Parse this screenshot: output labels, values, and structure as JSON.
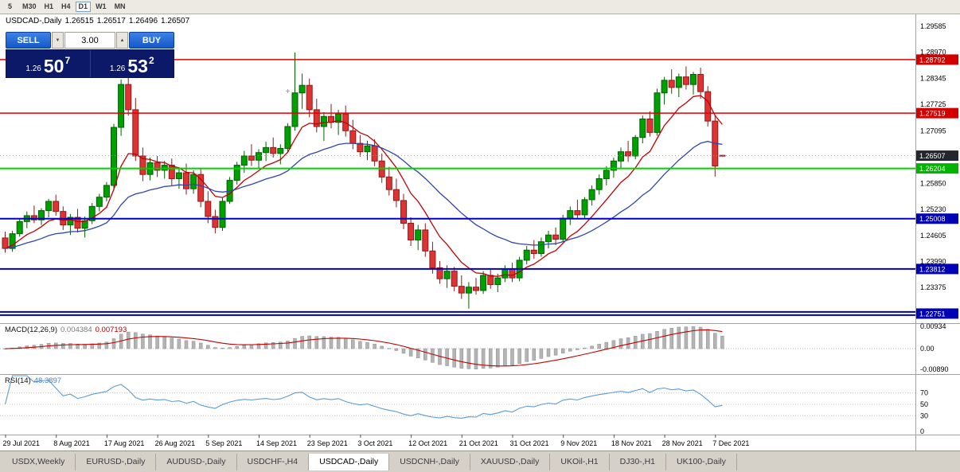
{
  "toolbar": {
    "timeframes": [
      {
        "label": "5",
        "active": false
      },
      {
        "label": "M30",
        "active": false
      },
      {
        "label": "H1",
        "active": false
      },
      {
        "label": "H4",
        "active": false
      },
      {
        "label": "D1",
        "active": true
      },
      {
        "label": "W1",
        "active": false
      },
      {
        "label": "MN",
        "active": false
      }
    ]
  },
  "chart_header": {
    "symbol": "USDCAD-,Daily",
    "open": "1.26515",
    "high": "1.26517",
    "low": "1.26496",
    "close": "1.26507"
  },
  "trade_panel": {
    "sell_label": "SELL",
    "buy_label": "BUY",
    "volume": "3.00",
    "decrease_glyph": "▼",
    "increase_glyph": "▲",
    "bid": {
      "prefix": "1.26",
      "big": "50",
      "sup": "7"
    },
    "ask": {
      "prefix": "1.26",
      "big": "53",
      "sup": "2"
    }
  },
  "indicators": {
    "macd": {
      "title": "MACD(12,26,9)",
      "value1": "0.004384",
      "value2": "0.007193",
      "fast": 12,
      "slow": 26,
      "signal": 9,
      "signal_color": "#c00000",
      "histogram_color": "#b4b4b4",
      "scale": [
        {
          "v": 0.00934,
          "t": "0.00934"
        },
        {
          "v": 0,
          "t": "0.00"
        },
        {
          "v": -0.0089,
          "t": "-0.00890"
        }
      ]
    },
    "rsi": {
      "title": "RSI(14)",
      "value": "48.3897",
      "period": 14,
      "line_color": "#5b9bd5",
      "levels": [
        70,
        50,
        30
      ],
      "scale": [
        {
          "v": 70,
          "t": "70"
        },
        {
          "v": 50,
          "t": "50"
        },
        {
          "v": 30,
          "t": "30"
        },
        {
          "v": 0,
          "t": "0"
        }
      ]
    }
  },
  "price_axis": {
    "ticks": [
      {
        "p": 1.29585,
        "t": "1.29585"
      },
      {
        "p": 1.2897,
        "t": "1.28970"
      },
      {
        "p": 1.28345,
        "t": "1.28345"
      },
      {
        "p": 1.27725,
        "t": "1.27725"
      },
      {
        "p": 1.27095,
        "t": "1.27095"
      },
      {
        "p": 1.26475,
        "t": "1.26475"
      },
      {
        "p": 1.2585,
        "t": "1.25850"
      },
      {
        "p": 1.2523,
        "t": "1.25230"
      },
      {
        "p": 1.24605,
        "t": "1.24605"
      },
      {
        "p": 1.2399,
        "t": "1.23990"
      },
      {
        "p": 1.23375,
        "t": "1.23375"
      }
    ],
    "badges": [
      {
        "p": 1.28792,
        "t": "1.28792",
        "bg": "#d40000"
      },
      {
        "p": 1.27519,
        "t": "1.27519",
        "bg": "#d40000"
      },
      {
        "p": 1.26507,
        "t": "1.26507",
        "bg": "#23262e"
      },
      {
        "p": 1.26204,
        "t": "1.26204",
        "bg": "#00b400"
      },
      {
        "p": 1.25008,
        "t": "1.25008",
        "bg": "#0000b4"
      },
      {
        "p": 1.23812,
        "t": "1.23812",
        "bg": "#0000b4"
      },
      {
        "p": 1.22751,
        "t": "1.22751",
        "bg": "#0000b4"
      }
    ]
  },
  "time_axis": {
    "labels": [
      {
        "i": 0,
        "t": "29 Jul 2021"
      },
      {
        "i": 7,
        "t": "8 Aug 2021"
      },
      {
        "i": 14,
        "t": "17 Aug 2021"
      },
      {
        "i": 21,
        "t": "26 Aug 2021"
      },
      {
        "i": 28,
        "t": "5 Sep 2021"
      },
      {
        "i": 35,
        "t": "14 Sep 2021"
      },
      {
        "i": 42,
        "t": "23 Sep 2021"
      },
      {
        "i": 49,
        "t": "3 Oct 2021"
      },
      {
        "i": 56,
        "t": "12 Oct 2021"
      },
      {
        "i": 63,
        "t": "21 Oct 2021"
      },
      {
        "i": 70,
        "t": "31 Oct 2021"
      },
      {
        "i": 77,
        "t": "9 Nov 2021"
      },
      {
        "i": 84,
        "t": "18 Nov 2021"
      },
      {
        "i": 91,
        "t": "28 Nov 2021"
      },
      {
        "i": 98,
        "t": "7 Dec 2021"
      }
    ]
  },
  "tabs": [
    {
      "label": "USDX,Weekly",
      "active": false
    },
    {
      "label": "EURUSD-,Daily",
      "active": false
    },
    {
      "label": "AUDUSD-,Daily",
      "active": false
    },
    {
      "label": "USDCHF-,H4",
      "active": false
    },
    {
      "label": "USDCAD-,Daily",
      "active": true
    },
    {
      "label": "USDCNH-,Daily",
      "active": false
    },
    {
      "label": "XAUUSD-,Daily",
      "active": false
    },
    {
      "label": "UKOil-,H1",
      "active": false
    },
    {
      "label": "DJ30-,H1",
      "active": false
    },
    {
      "label": "UK100-,Daily",
      "active": false
    }
  ],
  "chart_data": {
    "type": "candlestick",
    "symbol": "USDCAD",
    "timeframe": "Daily",
    "title": "USDCAD-,Daily",
    "ylim": [
      1.22523,
      1.29888
    ],
    "colors": {
      "up": "#00a000",
      "up_border": "#006000",
      "down": "#dd3333",
      "down_border": "#8e1a1a"
    },
    "ma_overlays": [
      {
        "period": 8,
        "color": "#c00000"
      },
      {
        "period": 24,
        "color": "#2e46ae"
      }
    ],
    "levels": [
      {
        "p": 1.28792,
        "color": "#e00000",
        "w": 1.5
      },
      {
        "p": 1.27519,
        "color": "#e00000",
        "w": 1.5
      },
      {
        "p": 1.26507,
        "color": "#9aa0a6",
        "w": 1,
        "dash": "1,3"
      },
      {
        "p": 1.26204,
        "color": "#00d200",
        "w": 2
      },
      {
        "p": 1.25008,
        "color": "#0000c8",
        "w": 2
      },
      {
        "p": 1.23812,
        "color": "#0000c8",
        "w": 2
      },
      {
        "p": 1.2279,
        "color": "#0000b4",
        "w": 2
      },
      {
        "p": 1.22714,
        "color": "#0000b4",
        "w": 2
      }
    ],
    "markers": [
      {
        "i": 15,
        "p": 1.2845,
        "glyph": "+"
      },
      {
        "i": 39,
        "p": 1.2798,
        "glyph": "+"
      }
    ],
    "current_price": 1.26507,
    "candles": [
      [
        1.2455,
        1.247,
        1.242,
        1.243
      ],
      [
        1.243,
        1.2472,
        1.2422,
        1.2465
      ],
      [
        1.2465,
        1.25,
        1.2458,
        1.2494
      ],
      [
        1.2494,
        1.2518,
        1.2478,
        1.2508
      ],
      [
        1.2508,
        1.2532,
        1.249,
        1.2498
      ],
      [
        1.2498,
        1.2526,
        1.2486,
        1.252
      ],
      [
        1.252,
        1.2548,
        1.2504,
        1.2542
      ],
      [
        1.2542,
        1.2558,
        1.2508,
        1.2518
      ],
      [
        1.2518,
        1.253,
        1.2474,
        1.2486
      ],
      [
        1.2486,
        1.2512,
        1.2462,
        1.2504
      ],
      [
        1.2504,
        1.2524,
        1.2468,
        1.2478
      ],
      [
        1.2478,
        1.2506,
        1.2456,
        1.2496
      ],
      [
        1.2496,
        1.2538,
        1.2488,
        1.253
      ],
      [
        1.253,
        1.256,
        1.2518,
        1.2552
      ],
      [
        1.2552,
        1.2588,
        1.2542,
        1.258
      ],
      [
        1.258,
        1.2726,
        1.2568,
        1.2718
      ],
      [
        1.2718,
        1.2832,
        1.2698,
        1.282
      ],
      [
        1.282,
        1.284,
        1.2746,
        1.276
      ],
      [
        1.276,
        1.2788,
        1.2638,
        1.265
      ],
      [
        1.265,
        1.267,
        1.259,
        1.2606
      ],
      [
        1.2606,
        1.2646,
        1.2592,
        1.2634
      ],
      [
        1.2634,
        1.265,
        1.26,
        1.2616
      ],
      [
        1.2616,
        1.2638,
        1.2596,
        1.2628
      ],
      [
        1.2628,
        1.2644,
        1.258,
        1.2596
      ],
      [
        1.2596,
        1.262,
        1.2572,
        1.261
      ],
      [
        1.261,
        1.2632,
        1.2558,
        1.2572
      ],
      [
        1.2572,
        1.2616,
        1.256,
        1.2606
      ],
      [
        1.2606,
        1.2622,
        1.2528,
        1.2542
      ],
      [
        1.2542,
        1.2566,
        1.249,
        1.2506
      ],
      [
        1.2506,
        1.2522,
        1.2466,
        1.248
      ],
      [
        1.248,
        1.255,
        1.2472,
        1.2542
      ],
      [
        1.2542,
        1.26,
        1.2536,
        1.2592
      ],
      [
        1.2592,
        1.2636,
        1.2582,
        1.2628
      ],
      [
        1.2628,
        1.2662,
        1.261,
        1.265
      ],
      [
        1.265,
        1.2678,
        1.2626,
        1.264
      ],
      [
        1.264,
        1.2666,
        1.262,
        1.2658
      ],
      [
        1.2658,
        1.2684,
        1.2638,
        1.267
      ],
      [
        1.267,
        1.2694,
        1.2646,
        1.2656
      ],
      [
        1.2656,
        1.2678,
        1.263,
        1.2668
      ],
      [
        1.2668,
        1.2728,
        1.2658,
        1.272
      ],
      [
        1.272,
        1.2896,
        1.271,
        1.28
      ],
      [
        1.28,
        1.2846,
        1.2762,
        1.2818
      ],
      [
        1.2818,
        1.2834,
        1.2742,
        1.276
      ],
      [
        1.276,
        1.2786,
        1.2706,
        1.272
      ],
      [
        1.272,
        1.2754,
        1.2686,
        1.2744
      ],
      [
        1.2744,
        1.2774,
        1.2716,
        1.273
      ],
      [
        1.273,
        1.276,
        1.27,
        1.275
      ],
      [
        1.275,
        1.277,
        1.2696,
        1.271
      ],
      [
        1.271,
        1.2736,
        1.2666,
        1.268
      ],
      [
        1.268,
        1.27,
        1.2648,
        1.266
      ],
      [
        1.266,
        1.2686,
        1.264,
        1.2674
      ],
      [
        1.2674,
        1.269,
        1.2626,
        1.2638
      ],
      [
        1.2638,
        1.2656,
        1.2586,
        1.26
      ],
      [
        1.26,
        1.2624,
        1.2556,
        1.257
      ],
      [
        1.257,
        1.2596,
        1.2528,
        1.2544
      ],
      [
        1.2544,
        1.256,
        1.2476,
        1.249
      ],
      [
        1.249,
        1.2504,
        1.2436,
        1.245
      ],
      [
        1.245,
        1.2486,
        1.2426,
        1.2474
      ],
      [
        1.2474,
        1.249,
        1.241,
        1.2424
      ],
      [
        1.2424,
        1.2446,
        1.237,
        1.2384
      ],
      [
        1.2384,
        1.24,
        1.2346,
        1.2358
      ],
      [
        1.2358,
        1.239,
        1.2336,
        1.2376
      ],
      [
        1.2376,
        1.2386,
        1.2328,
        1.234
      ],
      [
        1.234,
        1.2366,
        1.231,
        1.2324
      ],
      [
        1.2324,
        1.235,
        1.2287,
        1.2338
      ],
      [
        1.2338,
        1.236,
        1.232,
        1.233
      ],
      [
        1.233,
        1.2376,
        1.2322,
        1.2366
      ],
      [
        1.2366,
        1.238,
        1.2334,
        1.2344
      ],
      [
        1.2344,
        1.237,
        1.2326,
        1.236
      ],
      [
        1.236,
        1.239,
        1.235,
        1.2382
      ],
      [
        1.2382,
        1.2396,
        1.235,
        1.236
      ],
      [
        1.236,
        1.241,
        1.2352,
        1.2402
      ],
      [
        1.2402,
        1.2436,
        1.2392,
        1.2426
      ],
      [
        1.2426,
        1.245,
        1.2406,
        1.2418
      ],
      [
        1.2418,
        1.2456,
        1.241,
        1.2446
      ],
      [
        1.2446,
        1.2472,
        1.243,
        1.2462
      ],
      [
        1.2462,
        1.248,
        1.2438,
        1.2452
      ],
      [
        1.2452,
        1.251,
        1.2446,
        1.2502
      ],
      [
        1.2502,
        1.253,
        1.2486,
        1.252
      ],
      [
        1.252,
        1.2546,
        1.25,
        1.251
      ],
      [
        1.251,
        1.2552,
        1.2502,
        1.2546
      ],
      [
        1.2546,
        1.258,
        1.2532,
        1.257
      ],
      [
        1.257,
        1.2606,
        1.2558,
        1.2596
      ],
      [
        1.2596,
        1.2626,
        1.258,
        1.2616
      ],
      [
        1.2616,
        1.2646,
        1.2598,
        1.2638
      ],
      [
        1.2638,
        1.267,
        1.262,
        1.266
      ],
      [
        1.266,
        1.2686,
        1.2636,
        1.265
      ],
      [
        1.265,
        1.27,
        1.2642,
        1.2694
      ],
      [
        1.2694,
        1.2746,
        1.268,
        1.2738
      ],
      [
        1.2738,
        1.2756,
        1.2696,
        1.2706
      ],
      [
        1.2706,
        1.281,
        1.2698,
        1.28
      ],
      [
        1.28,
        1.2838,
        1.2772,
        1.283
      ],
      [
        1.283,
        1.2856,
        1.2798,
        1.2813
      ],
      [
        1.2813,
        1.2846,
        1.279,
        1.2838
      ],
      [
        1.2838,
        1.2863,
        1.2808,
        1.282
      ],
      [
        1.282,
        1.285,
        1.2796,
        1.2844
      ],
      [
        1.2844,
        1.286,
        1.2786,
        1.2803
      ],
      [
        1.2803,
        1.2816,
        1.272,
        1.2733
      ],
      [
        1.2733,
        1.2746,
        1.2601,
        1.2626
      ],
      [
        1.26515,
        1.26517,
        1.26496,
        1.26507
      ]
    ]
  }
}
